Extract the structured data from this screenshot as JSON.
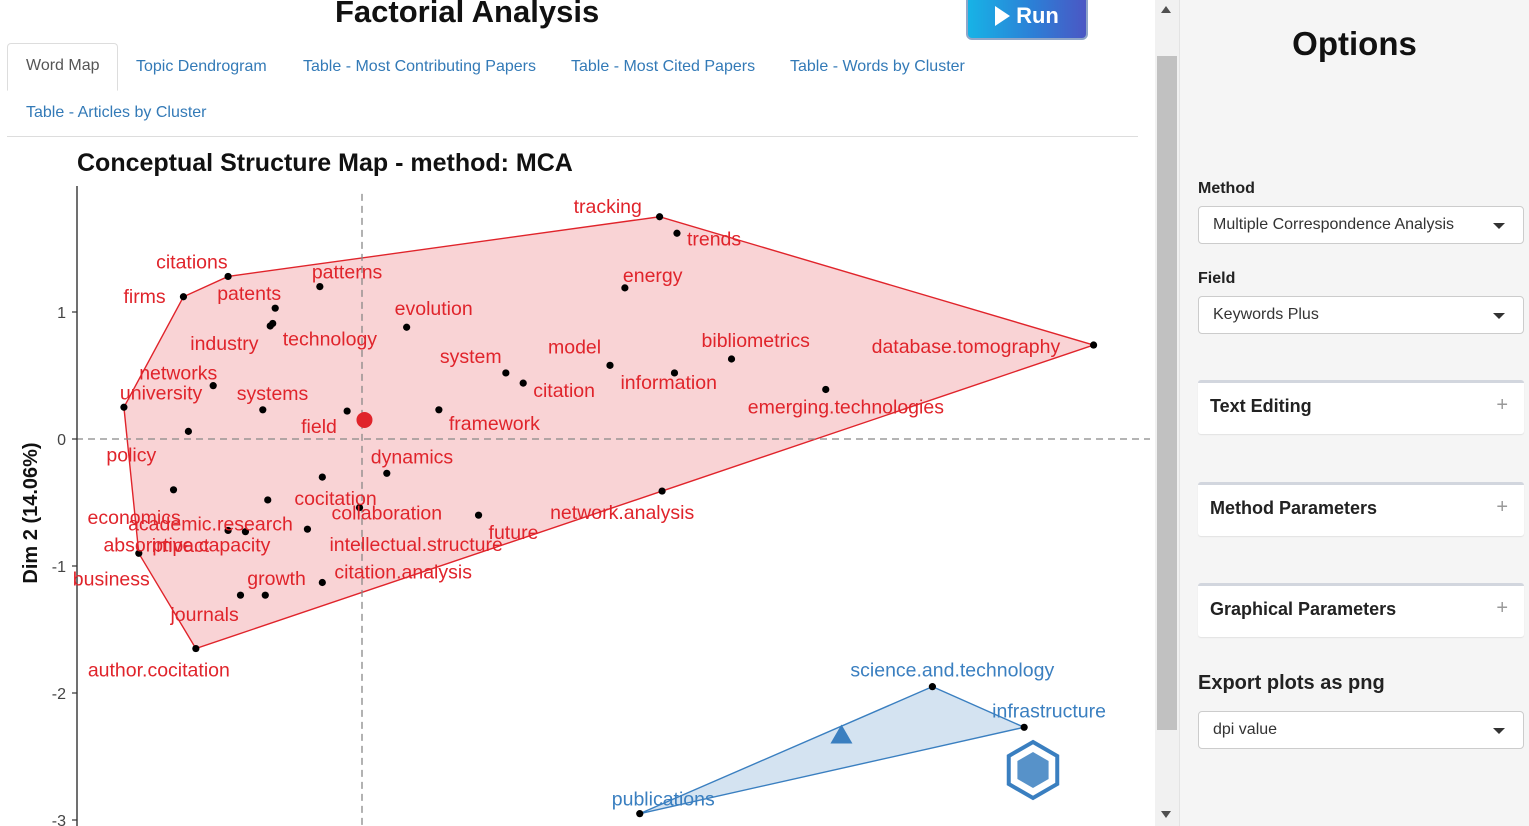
{
  "header": {
    "title": "Factorial Analysis",
    "run_label": "Run"
  },
  "tabs": [
    {
      "label": "Word Map",
      "active": true
    },
    {
      "label": "Topic Dendrogram"
    },
    {
      "label": "Table - Most Contributing Papers"
    },
    {
      "label": "Table - Most Cited Papers"
    },
    {
      "label": "Table - Words by Cluster"
    },
    {
      "label": "Table - Articles by Cluster"
    }
  ],
  "sidebar": {
    "title": "Options",
    "method_label": "Method",
    "method_value": "Multiple Correspondence Analysis",
    "field_label": "Field",
    "field_value": "Keywords Plus",
    "sections": [
      "Text Editing",
      "Method Parameters",
      "Graphical Parameters"
    ],
    "export_label": "Export plots as png",
    "dpi_placeholder": "dpi value"
  },
  "chart_data": {
    "type": "scatter",
    "title": "Conceptual Structure Map - method: MCA",
    "xlabel": "",
    "ylabel": "Dim 2 (14.06%)",
    "ylim": [
      -3,
      1.9
    ],
    "yticks": [
      "1",
      "0",
      "-1",
      "-2",
      "-3"
    ],
    "grid": false,
    "colors": {
      "cluster1": "#e0242b",
      "cluster2": "#3a7fc0"
    },
    "series": [
      {
        "points": [
          {
            "label": "tracking",
            "x": 1.2,
            "y": 1.75
          },
          {
            "label": "trends",
            "x": 1.27,
            "y": 1.62
          },
          {
            "label": "energy",
            "x": 1.06,
            "y": 1.19
          },
          {
            "label": "citations",
            "x": -0.54,
            "y": 1.28
          },
          {
            "label": "patterns",
            "x": -0.17,
            "y": 1.2
          },
          {
            "label": "firms",
            "x": -0.72,
            "y": 1.12
          },
          {
            "label": "patents",
            "x": -0.35,
            "y": 1.03
          },
          {
            "label": "industry",
            "x": -0.37,
            "y": 0.89
          },
          {
            "label": "technology",
            "x": -0.36,
            "y": 0.91
          },
          {
            "label": "evolution",
            "x": 0.18,
            "y": 0.88
          },
          {
            "label": "model",
            "x": 1.0,
            "y": 0.58
          },
          {
            "label": "system",
            "x": 0.58,
            "y": 0.52
          },
          {
            "label": "citation",
            "x": 0.65,
            "y": 0.44
          },
          {
            "label": "information",
            "x": 1.26,
            "y": 0.52
          },
          {
            "label": "bibliometrics",
            "x": 1.49,
            "y": 0.63
          },
          {
            "label": "database.tomography",
            "x": 2.95,
            "y": 0.74
          },
          {
            "label": "emerging.technologies",
            "x": 1.87,
            "y": 0.39
          },
          {
            "label": "networks",
            "x": -0.6,
            "y": 0.42
          },
          {
            "label": "systems",
            "x": -0.4,
            "y": 0.23
          },
          {
            "label": "university",
            "x": -0.96,
            "y": 0.25
          },
          {
            "label": "field",
            "x": -0.06,
            "y": 0.22
          },
          {
            "label": "framework",
            "x": 0.31,
            "y": 0.23
          },
          {
            "label": "policy",
            "x": -0.7,
            "y": 0.06
          },
          {
            "label": "dynamics",
            "x": 0.1,
            "y": -0.27
          },
          {
            "label": "impact",
            "x": -0.38,
            "y": -0.48
          },
          {
            "label": "cocitation",
            "x": -0.16,
            "y": -0.3
          },
          {
            "label": "economics",
            "x": -0.76,
            "y": -0.4
          },
          {
            "label": "academic.research",
            "x": -0.54,
            "y": -0.72
          },
          {
            "label": "absorptive.capacity",
            "x": -0.47,
            "y": -0.73
          },
          {
            "label": "collaboration",
            "x": -0.01,
            "y": -0.54
          },
          {
            "label": "future",
            "x": 0.47,
            "y": -0.6
          },
          {
            "label": "network.analysis",
            "x": 1.21,
            "y": -0.41
          },
          {
            "label": "business",
            "x": -0.9,
            "y": -0.9
          },
          {
            "label": "growth",
            "x": -0.39,
            "y": -1.23
          },
          {
            "label": "citation.analysis",
            "x": -0.16,
            "y": -1.13
          },
          {
            "label": "intellectual.structure",
            "x": -0.22,
            "y": -0.71
          },
          {
            "label": "journals",
            "x": -0.49,
            "y": -1.23
          },
          {
            "label": "author.cocitation",
            "x": -0.67,
            "y": -1.65
          }
        ]
      },
      {
        "points": [
          {
            "label": "science.and.technology",
            "x": 2.3,
            "y": -1.95
          },
          {
            "label": "infrastructure",
            "x": 2.67,
            "y": -2.27
          },
          {
            "label": "publications",
            "x": 1.12,
            "y": -2.95
          }
        ]
      }
    ]
  }
}
